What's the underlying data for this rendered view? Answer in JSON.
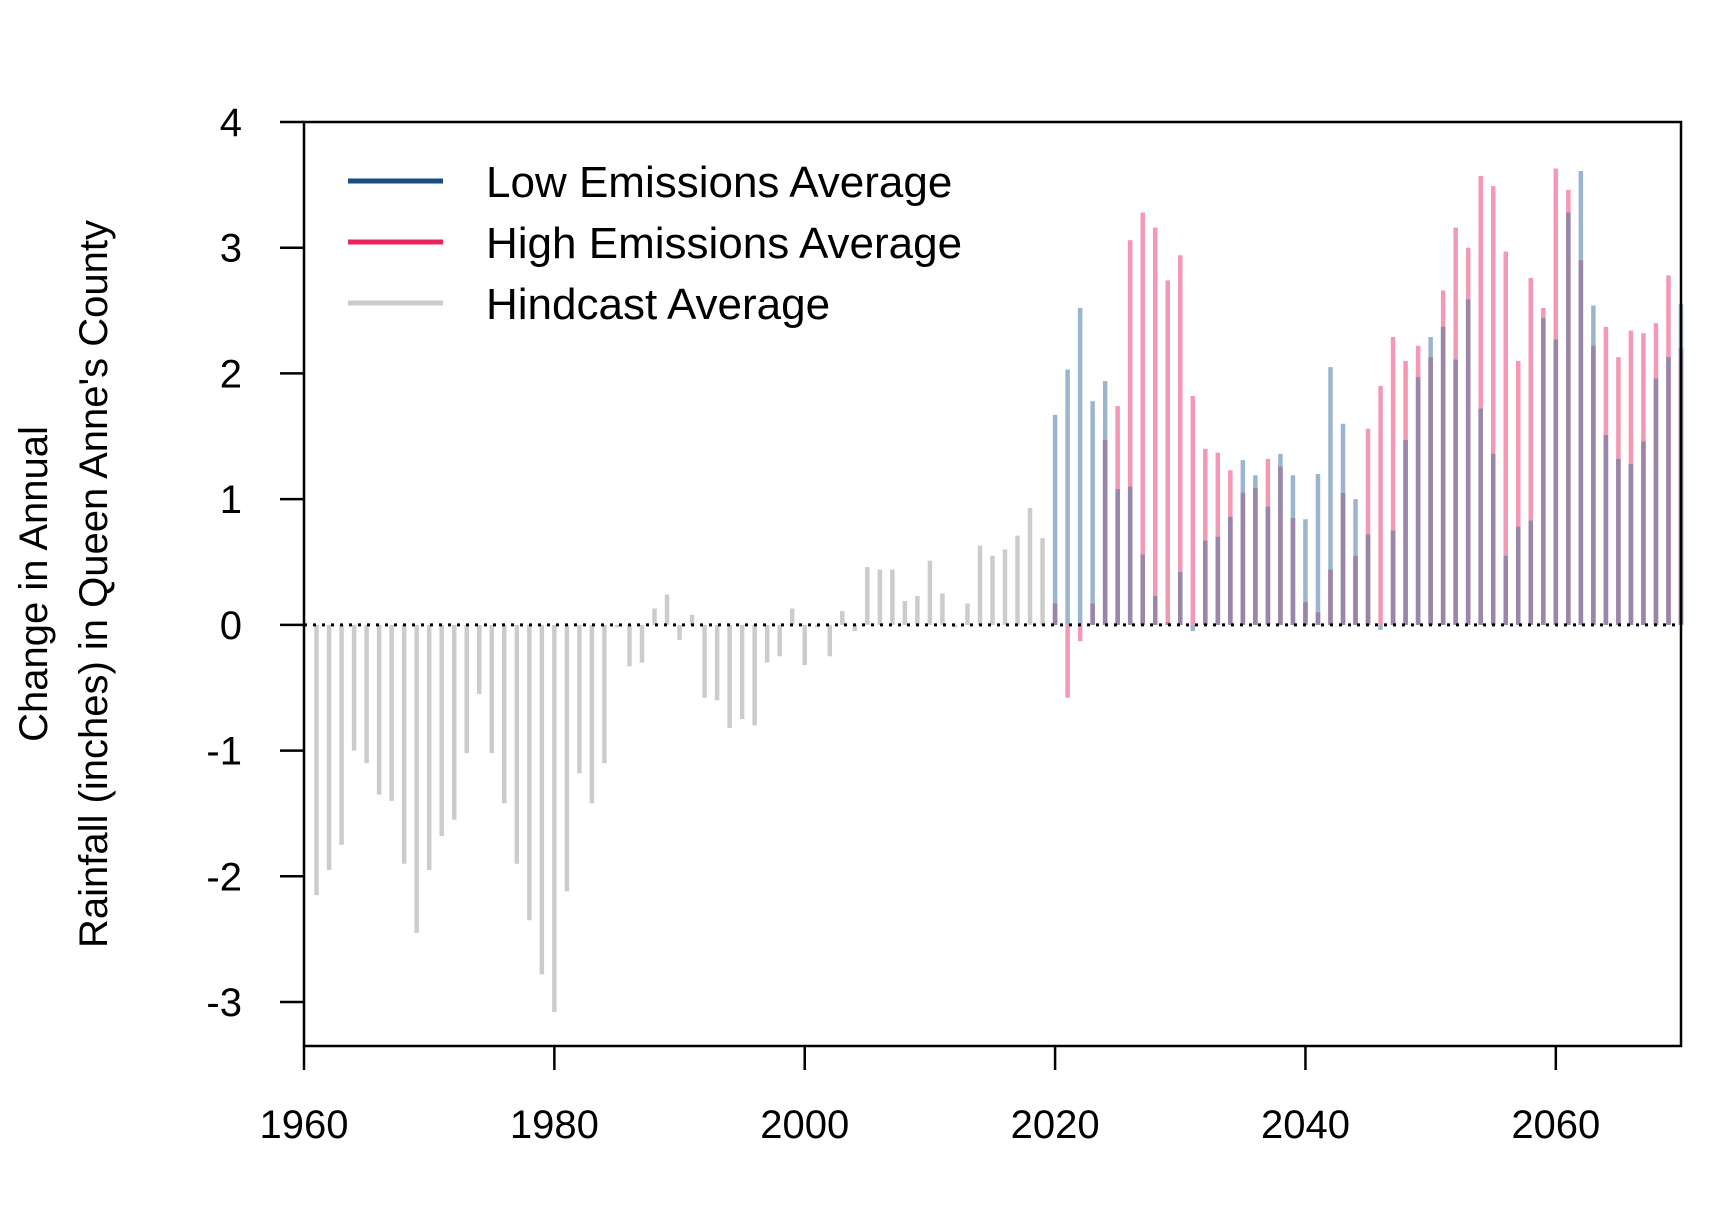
{
  "chart_data": {
    "type": "bar",
    "title": "",
    "xlabel": "",
    "ylabel_lines": [
      "Change in Annual",
      "Rainfall (inches) in Queen Anne's County"
    ],
    "xlim": [
      1960,
      2070
    ],
    "ylim": [
      -3.35,
      4
    ],
    "x_ticks": [
      1960,
      1980,
      2000,
      2020,
      2040,
      2060
    ],
    "y_ticks": [
      -3,
      -2,
      -1,
      0,
      1,
      2,
      3,
      4
    ],
    "reference_line": {
      "y": 0,
      "style": "dotted"
    },
    "legend": {
      "position": "top-left",
      "entries": [
        {
          "label": "Low Emissions Average",
          "color": "#1a4e7e"
        },
        {
          "label": "High Emissions Average",
          "color": "#e8245f"
        },
        {
          "label": "Hindcast Average",
          "color": "#cccccc"
        }
      ]
    },
    "series": [
      {
        "name": "Hindcast Average",
        "color": "#cccccc",
        "x_start": 1961,
        "values": [
          -2.15,
          -1.95,
          -1.75,
          -1.0,
          -1.1,
          -1.35,
          -1.4,
          -1.9,
          -2.45,
          -1.95,
          -1.68,
          -1.55,
          -1.02,
          -0.55,
          -1.02,
          -1.42,
          -1.9,
          -2.35,
          -2.78,
          -3.08,
          -2.12,
          -1.18,
          -1.42,
          -1.1,
          -0.02,
          -0.33,
          -0.3,
          0.13,
          0.24,
          -0.12,
          0.08,
          -0.58,
          -0.6,
          -0.82,
          -0.75,
          -0.8,
          -0.3,
          -0.25,
          0.13,
          -0.32,
          -0.02,
          -0.25,
          0.11,
          -0.05,
          0.46,
          0.44,
          0.44,
          0.19,
          0.23,
          0.51,
          0.25,
          -0.02,
          0.17,
          0.63,
          0.55,
          0.6,
          0.71,
          0.93,
          0.69
        ]
      },
      {
        "name": "High Emissions Average",
        "color": "#f598b4",
        "x_start": 2020,
        "values": [
          0.17,
          -0.58,
          -0.13,
          0.17,
          1.47,
          1.74,
          3.06,
          3.28,
          3.16,
          2.74,
          2.94,
          1.82,
          1.4,
          1.37,
          1.23,
          1.05,
          1.09,
          1.32,
          1.26,
          0.85,
          0.18,
          0.1,
          0.44,
          1.05,
          0.55,
          1.56,
          1.9,
          2.29,
          2.1,
          2.22,
          2.13,
          2.66,
          3.16,
          3.0,
          3.57,
          3.49,
          2.97,
          2.1,
          2.76,
          2.52,
          3.63,
          3.46,
          2.9,
          2.22,
          2.37,
          2.13,
          2.34,
          2.32,
          2.4,
          2.78,
          2.2
        ]
      },
      {
        "name": "Low Emissions Average",
        "color": "#9bb5cf",
        "x_start": 2020,
        "values": [
          1.67,
          2.03,
          2.52,
          1.78,
          1.94,
          1.08,
          1.1,
          0.56,
          0.23,
          0.02,
          0.42,
          -0.05,
          0.67,
          0.7,
          0.86,
          1.31,
          1.19,
          0.94,
          1.36,
          1.19,
          0.84,
          1.2,
          2.05,
          1.6,
          1.0,
          0.72,
          -0.04,
          0.75,
          1.47,
          1.97,
          2.29,
          2.37,
          2.11,
          2.59,
          1.72,
          1.36,
          0.55,
          0.78,
          0.83,
          2.44,
          2.27,
          3.28,
          3.61,
          2.54,
          1.51,
          1.32,
          1.28,
          1.46,
          1.96,
          2.13,
          2.55
        ]
      }
    ]
  }
}
